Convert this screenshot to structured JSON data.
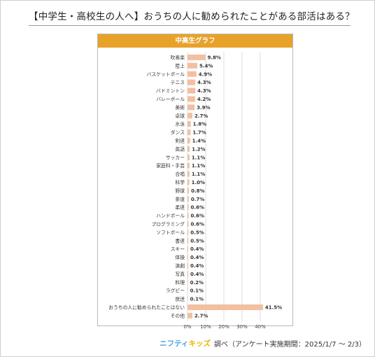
{
  "page": {
    "title": "【中学生・高校生の人へ】おうちの人に勧められたことがある部活はある？"
  },
  "footer": {
    "logo_part1": "ニフティ",
    "logo_part2": "キッズ",
    "note": "調べ（アンケート実施期間：2025/1/7 ～ 2/3）"
  },
  "colors": {
    "bar": "#f2bfa0",
    "header": "#e8a22a",
    "grid": "#dddddd"
  },
  "chart_data": {
    "type": "bar",
    "orientation": "horizontal",
    "title": "中高生グラフ",
    "categories": [
      "吹奏楽",
      "陸上",
      "バスケットボール",
      "テニス",
      "バドミントン",
      "バレーボール",
      "美術",
      "卓球",
      "水泳",
      "ダンス",
      "剣道",
      "英語",
      "サッカー",
      "家庭科・手芸",
      "合唱",
      "科学",
      "野球",
      "茶道",
      "柔道",
      "ハンドボール",
      "プログラミング",
      "ソフトボール",
      "書道",
      "スキー",
      "体操",
      "演劇",
      "写真",
      "料理",
      "ラグビー",
      "放送",
      "おうちの人に勧められたことはない",
      "その他"
    ],
    "values": [
      9.8,
      5.4,
      4.9,
      4.3,
      4.3,
      4.2,
      3.9,
      2.7,
      1.8,
      1.7,
      1.4,
      1.2,
      1.1,
      1.1,
      1.1,
      1.0,
      0.8,
      0.7,
      0.6,
      0.6,
      0.6,
      0.5,
      0.5,
      0.4,
      0.4,
      0.4,
      0.4,
      0.2,
      0.1,
      0.1,
      41.5,
      2.7
    ],
    "value_labels": [
      "9.8%",
      "5.4%",
      "4.9%",
      "4.3%",
      "4.3%",
      "4.2%",
      "3.9%",
      "2.7%",
      "1.8%",
      "1.7%",
      "1.4%",
      "1.2%",
      "1.1%",
      "1.1%",
      "1.1%",
      "1.0%",
      "0.8%",
      "0.7%",
      "0.6%",
      "0.6%",
      "0.6%",
      "0.5%",
      "0.5%",
      "0.4%",
      "0.4%",
      "0.4%",
      "0.4%",
      "0.2%",
      "0.1%",
      "0.1%",
      "41.5%",
      "2.7%"
    ],
    "xlim": [
      0,
      40
    ],
    "xticks": [
      0,
      10,
      20,
      30,
      40
    ],
    "xtick_labels": [
      "0%",
      "10%",
      "20%",
      "30%",
      "40%"
    ],
    "grid": true
  }
}
